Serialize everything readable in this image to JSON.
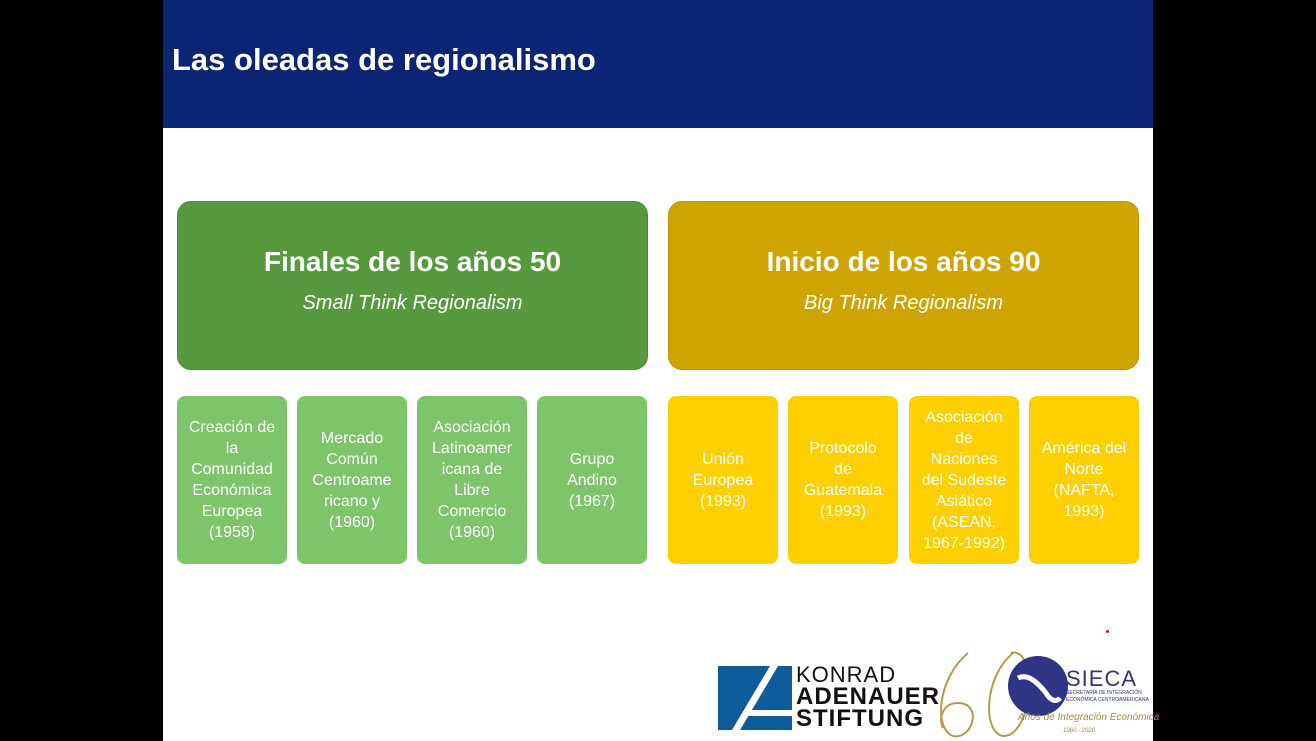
{
  "slide": {
    "title": "Las oleadas de regionalismo"
  },
  "colors": {
    "header": "#0b2473",
    "green_dark": "#56993f",
    "green_light": "#7dc46b",
    "gold_dark": "#cfa300",
    "gold_light": "#ffd000"
  },
  "groups": [
    {
      "heading": "Finales de los años 50",
      "subheading": "Small Think Regionalism",
      "items": [
        {
          "lines": [
            "Creación de",
            "la",
            "Comunidad",
            "Económica",
            "Europea",
            "(1958)"
          ]
        },
        {
          "lines": [
            "Mercado",
            "Común",
            "Centroame",
            "ricano y",
            "(1960)"
          ]
        },
        {
          "lines": [
            "Asociación",
            "Latinoamer",
            "icana de",
            "Libre",
            "Comercio",
            "(1960)"
          ]
        },
        {
          "lines": [
            "Grupo",
            "Andino",
            "(1967)"
          ]
        }
      ]
    },
    {
      "heading": "Inicio de los años 90",
      "subheading": "Big Think Regionalism",
      "items": [
        {
          "lines": [
            "Unión",
            "Europea",
            "(1993)"
          ]
        },
        {
          "lines": [
            "Protocolo",
            "de",
            "Guatemala",
            "(1993)"
          ]
        },
        {
          "lines": [
            "Asociación",
            "de",
            "Naciones",
            "del Sudeste",
            "Asiático",
            "(ASEAN,",
            "1967-1992)"
          ]
        },
        {
          "lines": [
            "América del",
            "Norte",
            "(NAFTA,",
            "1993)"
          ]
        }
      ]
    }
  ],
  "logos": {
    "kas": [
      "KONRAD",
      "ADENAUER",
      "STIFTUNG"
    ],
    "sixty": "60",
    "sieca": "SIECA",
    "sieca_sub": "SECRETARÍA DE INTEGRACIÓN ECONÓMICA CENTROAMERICANA",
    "anos": "Años de Integración Económica",
    "years": "1960 - 2020"
  }
}
